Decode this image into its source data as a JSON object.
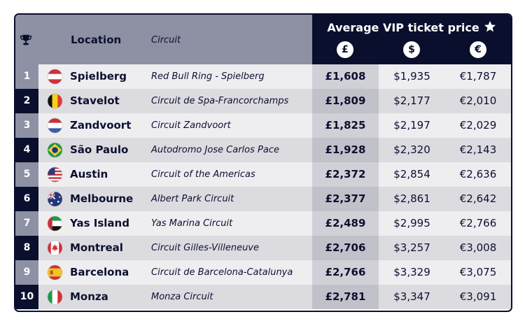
{
  "header": {
    "location": "Location",
    "circuit": "Circuit",
    "price_title": "Average VIP ticket price",
    "currencies": [
      "£",
      "$",
      "€"
    ]
  },
  "rows": [
    {
      "rank": "1",
      "location": "Spielberg",
      "flag": "austria-flag-icon",
      "circuit": "Red Bull Ring - Spielberg",
      "gbp": "£1,608",
      "usd": "$1,935",
      "eur": "€1,787"
    },
    {
      "rank": "2",
      "location": "Stavelot",
      "flag": "belgium-flag-icon",
      "circuit": "Circuit de Spa-Francorchamps",
      "gbp": "£1,809",
      "usd": "$2,177",
      "eur": "€2,010"
    },
    {
      "rank": "3",
      "location": "Zandvoort",
      "flag": "netherlands-flag-icon",
      "circuit": "Circuit Zandvoort",
      "gbp": "£1,825",
      "usd": "$2,197",
      "eur": "€2,029"
    },
    {
      "rank": "4",
      "location": "São Paulo",
      "flag": "brazil-flag-icon",
      "circuit": "Autodromo Jose Carlos Pace",
      "gbp": "£1,928",
      "usd": "$2,320",
      "eur": "€2,143"
    },
    {
      "rank": "5",
      "location": "Austin",
      "flag": "usa-flag-icon",
      "circuit": "Circuit of the Americas",
      "gbp": "£2,372",
      "usd": "$2,854",
      "eur": "€2,636"
    },
    {
      "rank": "6",
      "location": "Melbourne",
      "flag": "australia-flag-icon",
      "circuit": "Albert Park Circuit",
      "gbp": "£2,377",
      "usd": "$2,861",
      "eur": "€2,642"
    },
    {
      "rank": "7",
      "location": "Yas Island",
      "flag": "uae-flag-icon",
      "circuit": "Yas Marina Circuit",
      "gbp": "£2,489",
      "usd": "$2,995",
      "eur": "€2,766"
    },
    {
      "rank": "8",
      "location": "Montreal",
      "flag": "canada-flag-icon",
      "circuit": "Circuit Gilles-Villeneuve",
      "gbp": "£2,706",
      "usd": "$3,257",
      "eur": "€3,008"
    },
    {
      "rank": "9",
      "location": "Barcelona",
      "flag": "spain-flag-icon",
      "circuit": "Circuit de Barcelona-Catalunya",
      "gbp": "£2,766",
      "usd": "$3,329",
      "eur": "€3,075"
    },
    {
      "rank": "10",
      "location": "Monza",
      "flag": "italy-flag-icon",
      "circuit": "Monza Circuit",
      "gbp": "£2,781",
      "usd": "$3,347",
      "eur": "€3,091"
    }
  ],
  "colors": {
    "navy": "#0a0f2e",
    "header_grey": "#8d91a3",
    "rank_grey": "#8d91a3",
    "row_light": "#eeeef1",
    "row_dark": "#dcdce0",
    "gbp_light": "#d0d0d7",
    "gbp_dark": "#c1c1c9"
  }
}
